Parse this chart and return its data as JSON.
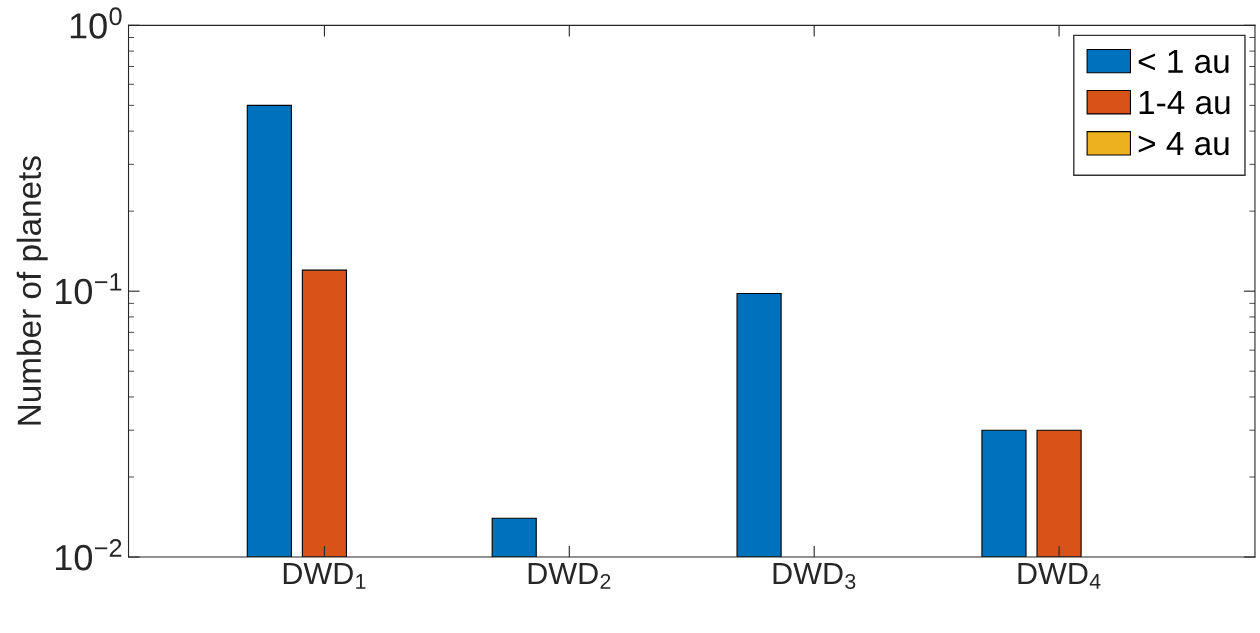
{
  "chart_data": {
    "type": "bar",
    "ylabel": "Number of planets",
    "categories": [
      "DWD$_{1}$",
      "DWD$_{2}$",
      "DWD$_{3}$",
      "DWD$_{4}$"
    ],
    "series": [
      {
        "name": "< 1 au",
        "color": "#0072bd",
        "values": [
          0.5,
          0.014,
          0.098,
          0.03
        ]
      },
      {
        "name": "1-4 au",
        "color": "#d95319",
        "values": [
          0.12,
          null,
          null,
          0.03
        ]
      },
      {
        "name": "> 4 au",
        "color": "#edb120",
        "values": [
          null,
          null,
          null,
          null
        ]
      }
    ],
    "log": "y",
    "ylim": [
      0.01,
      1
    ],
    "yticks": [
      {
        "value": 0.01,
        "label": "10$^{−2}$"
      },
      {
        "value": 0.1,
        "label": "10$^{−1}$"
      },
      {
        "value": 1,
        "label": "10$^{0}$"
      }
    ],
    "legend": "top right",
    "grid": false
  }
}
